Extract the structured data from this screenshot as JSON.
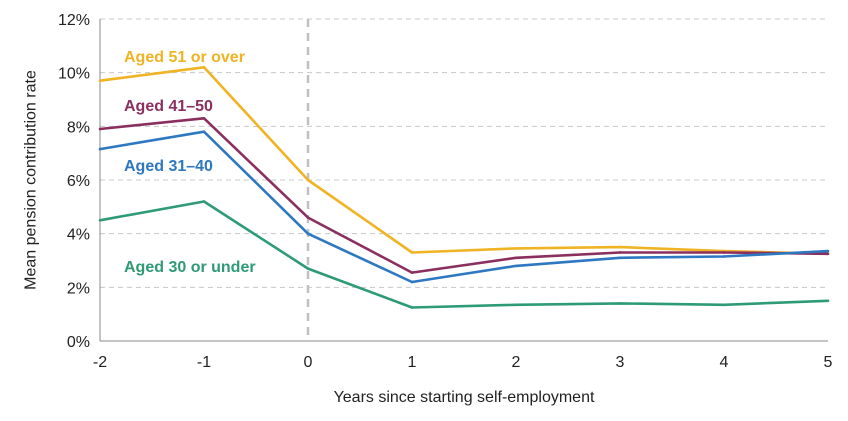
{
  "chart_data": {
    "type": "line",
    "title": "",
    "xlabel": "Years since starting self-employment",
    "ylabel": "Mean pension contribution rate",
    "x": [
      -2,
      -1,
      0,
      1,
      2,
      3,
      4,
      5
    ],
    "x_tick_labels": [
      "-2",
      "-1",
      "0",
      "1",
      "2",
      "3",
      "4",
      "5"
    ],
    "y_ticks": [
      0,
      2,
      4,
      6,
      8,
      10,
      12
    ],
    "y_tick_labels": [
      "0%",
      "2%",
      "4%",
      "6%",
      "8%",
      "10%",
      "12%"
    ],
    "xlim": [
      -2,
      5
    ],
    "ylim": [
      0,
      12
    ],
    "grid": "horizontal dashed",
    "reference_line_x": 0,
    "legend": "direct labels on lines",
    "series": [
      {
        "name": "Aged 51 or over",
        "color": "#f0b323",
        "values": [
          9.7,
          10.2,
          6.0,
          3.3,
          3.45,
          3.5,
          3.35,
          3.25
        ]
      },
      {
        "name": "Aged 41–50",
        "color": "#8b2f5f",
        "values": [
          7.9,
          8.3,
          4.6,
          2.55,
          3.1,
          3.3,
          3.3,
          3.25
        ]
      },
      {
        "name": "Aged 31–40",
        "color": "#2e78c1",
        "values": [
          7.15,
          7.8,
          4.0,
          2.2,
          2.8,
          3.1,
          3.15,
          3.35
        ]
      },
      {
        "name": "Aged 30 or under",
        "color": "#2e9b75",
        "values": [
          4.5,
          5.2,
          2.7,
          1.25,
          1.35,
          1.4,
          1.35,
          1.5
        ]
      }
    ]
  }
}
